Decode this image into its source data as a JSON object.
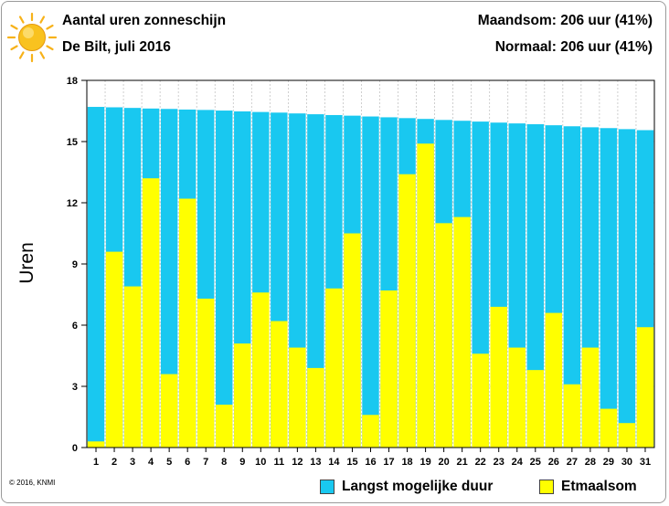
{
  "header": {
    "title": "Aantal uren zonneschijn",
    "subtitle": "De Bilt, juli 2016",
    "stat_month": "Maandsom: 206 uur (41%)",
    "stat_normal": "Normaal: 206 uur (41%)"
  },
  "icons": {
    "sun": "sun-icon"
  },
  "copyright": "© 2016, KNMI",
  "colors": {
    "max_duration": "#19c8f0",
    "sunshine": "#ffff00",
    "sun": "#f7b21a"
  },
  "chart_data": {
    "type": "bar",
    "title": "Aantal uren zonneschijn",
    "ylabel": "Uren",
    "xlabel": "",
    "ylim": [
      0,
      18
    ],
    "yticks": [
      0,
      3,
      6,
      9,
      12,
      15,
      18
    ],
    "grid": true,
    "legend_position": "bottom",
    "categories": [
      "1",
      "2",
      "3",
      "4",
      "5",
      "6",
      "7",
      "8",
      "9",
      "10",
      "11",
      "12",
      "13",
      "14",
      "15",
      "16",
      "17",
      "18",
      "19",
      "20",
      "21",
      "22",
      "23",
      "24",
      "25",
      "26",
      "27",
      "28",
      "29",
      "30",
      "31"
    ],
    "series": [
      {
        "name": "Langst mogelijke duur",
        "color": "#19c8f0",
        "values": [
          16.7,
          16.68,
          16.65,
          16.62,
          16.6,
          16.57,
          16.55,
          16.52,
          16.48,
          16.45,
          16.42,
          16.38,
          16.34,
          16.3,
          16.27,
          16.23,
          16.19,
          16.15,
          16.11,
          16.06,
          16.02,
          15.98,
          15.93,
          15.89,
          15.85,
          15.8,
          15.75,
          15.7,
          15.66,
          15.61,
          15.56
        ]
      },
      {
        "name": "Etmaalsom",
        "color": "#ffff00",
        "values": [
          0.3,
          9.6,
          7.9,
          13.2,
          3.6,
          12.2,
          7.3,
          2.1,
          5.1,
          7.6,
          6.2,
          4.9,
          3.9,
          7.8,
          10.5,
          1.6,
          7.7,
          13.4,
          14.9,
          11.0,
          11.3,
          4.6,
          6.9,
          4.9,
          3.8,
          6.6,
          3.1,
          4.9,
          1.9,
          1.2,
          5.9
        ]
      }
    ]
  }
}
